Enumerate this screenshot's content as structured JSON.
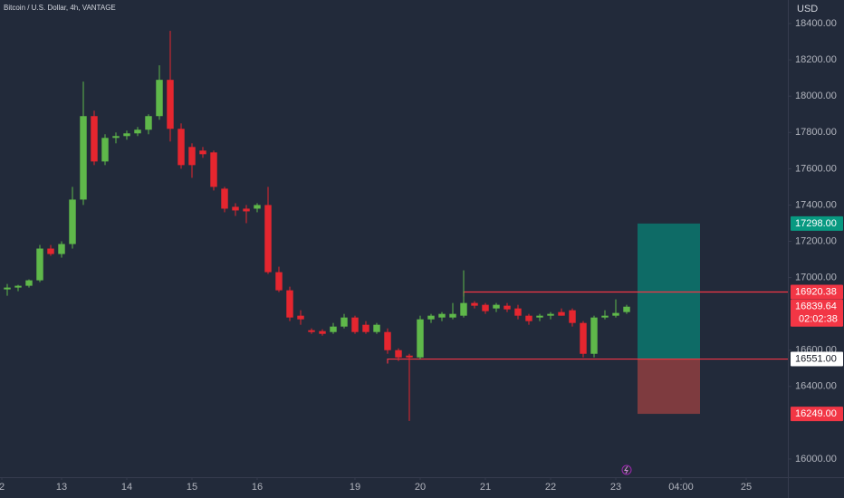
{
  "chart_data": {
    "type": "candlestick",
    "title": "Bitcoin / U.S. Dollar, 4h, VANTAGE",
    "currency": "USD",
    "up_color": "#5fb84a",
    "down_color": "#e5262f",
    "categories": [
      null,
      null,
      null,
      null,
      null,
      null,
      null,
      null,
      null,
      null,
      null,
      null,
      null,
      null,
      null,
      null,
      null,
      null,
      null,
      null,
      null,
      null,
      null,
      null,
      null,
      null,
      null,
      null,
      null,
      null,
      null,
      null,
      null,
      null,
      null,
      null,
      null,
      null,
      null,
      null,
      null,
      null,
      null,
      null,
      null,
      null,
      null,
      null,
      null,
      null,
      null,
      null,
      null,
      null,
      null,
      null,
      null,
      null
    ],
    "open": [
      16935,
      16945,
      16955,
      16985,
      17160,
      17130,
      17185,
      17430,
      17890,
      17640,
      17770,
      17780,
      17795,
      17815,
      17890,
      18090,
      17820,
      17720,
      17700,
      17690,
      17490,
      17390,
      17380,
      17380,
      17400,
      17030,
      16930,
      16790,
      16710,
      16705,
      16700,
      16730,
      16780,
      16740,
      16700,
      16700,
      16600,
      16570,
      16560,
      16770,
      16780,
      16780,
      16790,
      16860,
      16850,
      16830,
      16845,
      16830,
      16790,
      16780,
      16790,
      16810,
      16820,
      16750,
      16580,
      16780,
      16790,
      16810
    ],
    "high": [
      16965,
      16960,
      16990,
      17180,
      17180,
      17200,
      17500,
      18080,
      17920,
      17790,
      17800,
      17810,
      17830,
      17900,
      18170,
      18360,
      17850,
      17740,
      17720,
      17700,
      17500,
      17410,
      17400,
      17410,
      17500,
      17060,
      16950,
      16820,
      16720,
      16715,
      16750,
      16800,
      16790,
      16760,
      16750,
      16720,
      16610,
      16580,
      16790,
      16800,
      16810,
      16860,
      17040,
      16870,
      16860,
      16860,
      16860,
      16850,
      16800,
      16800,
      16810,
      16830,
      16830,
      16760,
      16790,
      16820,
      16880,
      16850
    ],
    "low": [
      16900,
      16925,
      16945,
      16975,
      17120,
      17110,
      17160,
      17400,
      17620,
      17620,
      17740,
      17760,
      17780,
      17790,
      17870,
      17750,
      17600,
      17550,
      17660,
      17480,
      17360,
      17340,
      17300,
      17360,
      17020,
      16920,
      16760,
      16740,
      16690,
      16680,
      16690,
      16720,
      16690,
      16690,
      16690,
      16580,
      16540,
      16210,
      16550,
      16750,
      16760,
      16770,
      16780,
      16830,
      16800,
      16810,
      16810,
      16770,
      16740,
      16760,
      16770,
      16790,
      16730,
      16560,
      16560,
      16770,
      16780,
      16800
    ],
    "close": [
      16945,
      16955,
      16985,
      17160,
      17130,
      17185,
      17430,
      17890,
      17640,
      17770,
      17780,
      17795,
      17815,
      17890,
      18090,
      17820,
      17620,
      17620,
      17680,
      17500,
      17380,
      17370,
      17365,
      17400,
      17030,
      16930,
      16780,
      16770,
      16700,
      16690,
      16730,
      16780,
      16700,
      16700,
      16740,
      16600,
      16560,
      16560,
      16770,
      16790,
      16800,
      16800,
      16860,
      16845,
      16815,
      16850,
      16825,
      16790,
      16760,
      16790,
      16800,
      16790,
      16750,
      16580,
      16780,
      16790,
      16805,
      16839.64
    ],
    "xlim": [
      -0.667,
      71.833
    ],
    "ylim": [
      15900,
      18530
    ],
    "xticks": [
      {
        "value": -0.5,
        "label": "2"
      },
      {
        "value": 5,
        "label": "13"
      },
      {
        "value": 11,
        "label": "14"
      },
      {
        "value": 17,
        "label": "15"
      },
      {
        "value": 23,
        "label": "16"
      },
      {
        "value": 32,
        "label": "19"
      },
      {
        "value": 38,
        "label": "20"
      },
      {
        "value": 44,
        "label": "21"
      },
      {
        "value": 50,
        "label": "22"
      },
      {
        "value": 56,
        "label": "23"
      },
      {
        "value": 62,
        "label": "04:00"
      },
      {
        "value": 68,
        "label": "25"
      }
    ],
    "yticks": [
      {
        "value": 18400,
        "label": "18400.00"
      },
      {
        "value": 18200,
        "label": "18200.00"
      },
      {
        "value": 18000,
        "label": "18000.00"
      },
      {
        "value": 17800,
        "label": "17800.00"
      },
      {
        "value": 17600,
        "label": "17600.00"
      },
      {
        "value": 17400,
        "label": "17400.00"
      },
      {
        "value": 17200,
        "label": "17200.00"
      },
      {
        "value": 17000,
        "label": "17000.00"
      },
      {
        "value": 16600,
        "label": "16600.00"
      },
      {
        "value": 16400,
        "label": "16400.00"
      },
      {
        "value": 16000,
        "label": "16000.00"
      }
    ],
    "levels": [
      {
        "value": 16920.38,
        "start": 42,
        "color": "#f23645"
      },
      {
        "value": 16551,
        "start": 35,
        "color": "#f23645"
      }
    ],
    "position": {
      "entry": 16551,
      "target": 17298,
      "stop": 16249,
      "start": 58,
      "end": 63.75,
      "profit_color": "#0e6b66",
      "loss_color": "#7e3b3f"
    },
    "price_tags": [
      {
        "value": 17298,
        "label": "17298.00",
        "color": "#089981"
      },
      {
        "value": 16920.38,
        "label": "16920.38",
        "color": "#f23645"
      },
      {
        "value": 16839.64,
        "label": "16839.64",
        "countdown": "02:02:38",
        "color": "#f23645"
      },
      {
        "value": 16551,
        "label": "16551.00",
        "color": "#ffffff"
      },
      {
        "value": 16249,
        "label": "16249.00",
        "color": "#f23645"
      }
    ]
  }
}
